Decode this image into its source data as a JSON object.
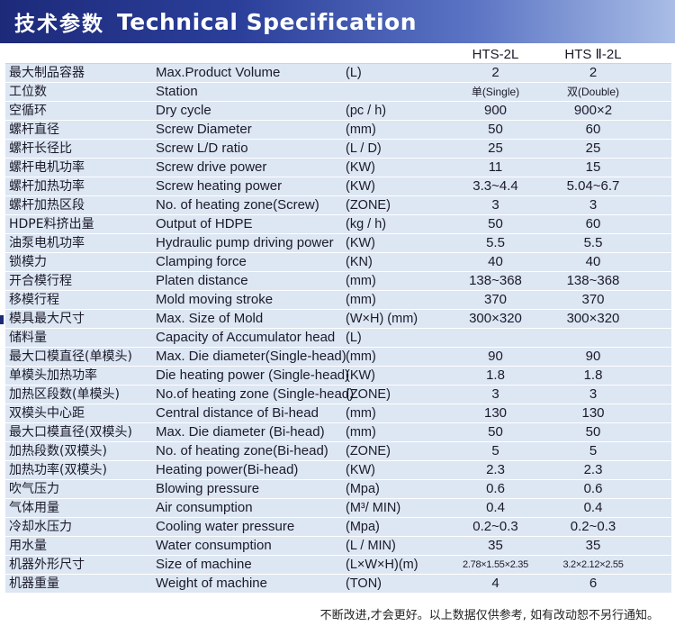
{
  "header": {
    "title_cn": "技术参数",
    "title_en": "Technical Specification"
  },
  "models": [
    "HTS-2L",
    "HTS Ⅱ-2L"
  ],
  "rows": [
    {
      "cn": "最大制品容器",
      "en": "Max.Product Volume",
      "unit": "(L)",
      "v1": "2",
      "v2": "2"
    },
    {
      "cn": "工位数",
      "en": "Station",
      "unit": "",
      "v1": "单(Single)",
      "v2": "双(Double)"
    },
    {
      "cn": "空循环",
      "en": "Dry cycle",
      "unit": "(pc / h)",
      "v1": "900",
      "v2": "900×2"
    },
    {
      "cn": "螺杆直径",
      "en": "Screw Diameter",
      "unit": "(mm)",
      "v1": "50",
      "v2": "60"
    },
    {
      "cn": "螺杆长径比",
      "en": "Screw L/D ratio",
      "unit": "(L / D)",
      "v1": "25",
      "v2": "25"
    },
    {
      "cn": "螺杆电机功率",
      "en": "Screw drive power",
      "unit": "(KW)",
      "v1": "11",
      "v2": "15"
    },
    {
      "cn": "螺杆加热功率",
      "en": "Screw heating power",
      "unit": "(KW)",
      "v1": "3.3~4.4",
      "v2": "5.04~6.7"
    },
    {
      "cn": "螺杆加热区段",
      "en": "No. of heating zone(Screw)",
      "unit": "(ZONE)",
      "v1": "3",
      "v2": "3"
    },
    {
      "cn": "HDPE料挤出量",
      "en": "Output of HDPE",
      "unit": "(kg / h)",
      "v1": "50",
      "v2": "60"
    },
    {
      "cn": "油泵电机功率",
      "en": "Hydraulic pump driving power",
      "unit": "(KW)",
      "v1": "5.5",
      "v2": "5.5"
    },
    {
      "cn": "锁模力",
      "en": "Clamping force",
      "unit": "(KN)",
      "v1": "40",
      "v2": "40"
    },
    {
      "cn": "开合模行程",
      "en": "Platen distance",
      "unit": "(mm)",
      "v1": "138~368",
      "v2": "138~368"
    },
    {
      "cn": "移模行程",
      "en": "Mold moving stroke",
      "unit": "(mm)",
      "v1": "370",
      "v2": "370"
    },
    {
      "cn": "模具最大尺寸",
      "en": "Max. Size of Mold",
      "unit": "(W×H) (mm)",
      "v1": "300×320",
      "v2": "300×320"
    },
    {
      "cn": "储料量",
      "en": "Capacity of Accumulator head",
      "unit": "(L)",
      "v1": "",
      "v2": ""
    },
    {
      "cn": "最大口模直径(单模头)",
      "en": "Max. Die diameter(Single-head)",
      "unit": "(mm)",
      "v1": "90",
      "v2": "90"
    },
    {
      "cn": "单模头加热功率",
      "en": "Die heating power (Single-head)",
      "unit": "(KW)",
      "v1": "1.8",
      "v2": "1.8"
    },
    {
      "cn": "加热区段数(单模头)",
      "en": "No.of heating zone (Single-head)",
      "unit": "(ZONE)",
      "v1": "3",
      "v2": "3"
    },
    {
      "cn": "双模头中心距",
      "en": "Central distance of Bi-head",
      "unit": "(mm)",
      "v1": "130",
      "v2": "130"
    },
    {
      "cn": "最大口模直径(双模头)",
      "en": "Max. Die diameter (Bi-head)",
      "unit": "(mm)",
      "v1": "50",
      "v2": "50"
    },
    {
      "cn": "加热段数(双模头)",
      "en": "No. of heating zone(Bi-head)",
      "unit": "(ZONE)",
      "v1": "5",
      "v2": "5"
    },
    {
      "cn": "加热功率(双模头)",
      "en": "Heating power(Bi-head)",
      "unit": "(KW)",
      "v1": "2.3",
      "v2": "2.3"
    },
    {
      "cn": "吹气压力",
      "en": "Blowing pressure",
      "unit": "(Mpa)",
      "v1": "0.6",
      "v2": "0.6"
    },
    {
      "cn": "气体用量",
      "en": "Air consumption",
      "unit": "(M³/ MIN)",
      "v1": "0.4",
      "v2": "0.4"
    },
    {
      "cn": "冷却水压力",
      "en": "Cooling water pressure",
      "unit": "(Mpa)",
      "v1": "0.2~0.3",
      "v2": "0.2~0.3"
    },
    {
      "cn": "用水量",
      "en": "Water consumption",
      "unit": "(L / MIN)",
      "v1": "35",
      "v2": "35"
    },
    {
      "cn": "机器外形尺寸",
      "en": "Size of machine",
      "unit": "(L×W×H)(m)",
      "v1": "2.78×1.55×2.35",
      "v2": "3.2×2.12×2.55"
    },
    {
      "cn": "机器重量",
      "en": "Weight of machine",
      "unit": "(TON)",
      "v1": "4",
      "v2": "6"
    }
  ],
  "footer": "不断改进,才会更好。以上数据仅供参考, 如有改动恕不另行通知。"
}
